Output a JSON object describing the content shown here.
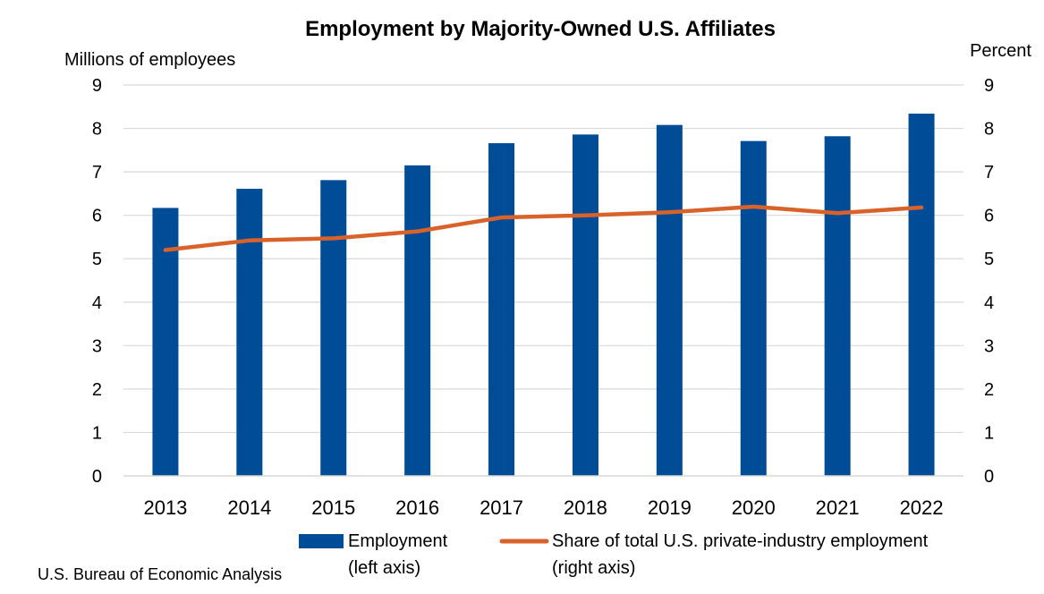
{
  "chart_data": {
    "type": "bar+line",
    "title": "Employment by Majority-Owned U.S. Affiliates",
    "left_axis_label": "Millions of employees",
    "right_axis_label": "Percent",
    "categories": [
      "2013",
      "2014",
      "2015",
      "2016",
      "2017",
      "2018",
      "2019",
      "2020",
      "2021",
      "2022"
    ],
    "left_ylim": [
      0,
      9
    ],
    "right_ylim": [
      0,
      9
    ],
    "yticks": [
      "0",
      "1",
      "2",
      "3",
      "4",
      "5",
      "6",
      "7",
      "8",
      "9"
    ],
    "grid": true,
    "series": [
      {
        "name": "Employment",
        "legend_line1": "Employment",
        "legend_line2": "(left axis)",
        "kind": "bar",
        "axis": "left",
        "color": "#004C97",
        "values": [
          6.17,
          6.61,
          6.81,
          7.15,
          7.66,
          7.86,
          8.08,
          7.71,
          7.82,
          8.34
        ]
      },
      {
        "name": "Share of total U.S. private-industry employment",
        "legend_line1": "Share of total U.S. private-industry employment",
        "legend_line2": "(right axis)",
        "kind": "line",
        "axis": "right",
        "color": "#D9622B",
        "values": [
          5.2,
          5.42,
          5.47,
          5.63,
          5.95,
          6.0,
          6.07,
          6.2,
          6.05,
          6.18
        ]
      }
    ],
    "legend_position": "bottom",
    "source": "U.S. Bureau of Economic Analysis"
  }
}
